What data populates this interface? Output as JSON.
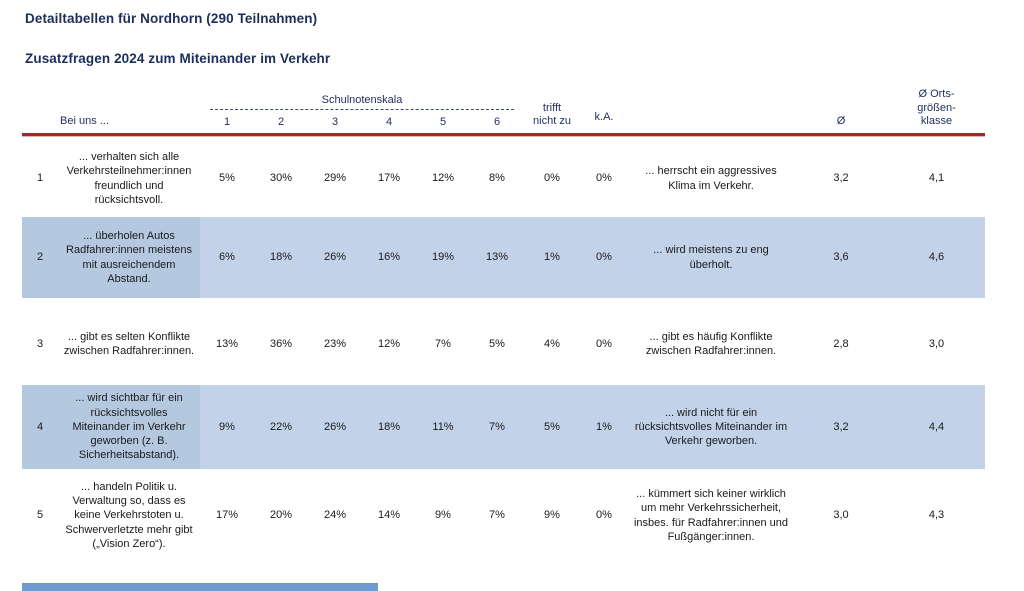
{
  "page": {
    "title": "Detailtabellen für Nordhorn (290 Teilnahmen)",
    "subtitle": "Zusatzfragen 2024 zum Miteinander im Verkehr"
  },
  "table": {
    "header": {
      "bei_uns": "Bei uns ...",
      "scale_label": "Schulnotenskala",
      "scale_columns": [
        "1",
        "2",
        "3",
        "4",
        "5",
        "6"
      ],
      "trifft_lines": [
        "trifft",
        "nicht zu"
      ],
      "ka": "k.A.",
      "avg": "Ø",
      "avg_class_lines": [
        "Ø Orts-",
        "größen-",
        "klasse"
      ]
    },
    "rows": [
      {
        "num": "1",
        "question_positive": "... verhalten sich alle Verkehrsteilnehmer:innen freundlich und rücksichtsvoll.",
        "values": [
          "5%",
          "30%",
          "29%",
          "17%",
          "12%",
          "8%"
        ],
        "trifft_nicht_zu": "0%",
        "ka": "0%",
        "question_negative": "... herrscht ein aggressives Klima im Verkehr.",
        "avg": "3,2",
        "avg_class": "4,1"
      },
      {
        "num": "2",
        "question_positive": "... überholen Autos Radfahrer:innen meistens mit ausreichendem Abstand.",
        "values": [
          "6%",
          "18%",
          "26%",
          "16%",
          "19%",
          "13%"
        ],
        "trifft_nicht_zu": "1%",
        "ka": "0%",
        "question_negative": "... wird meistens zu eng überholt.",
        "avg": "3,6",
        "avg_class": "4,6"
      },
      {
        "num": "3",
        "question_positive": "... gibt es selten Konflikte zwischen Radfahrer:innen.",
        "values": [
          "13%",
          "36%",
          "23%",
          "12%",
          "7%",
          "5%"
        ],
        "trifft_nicht_zu": "4%",
        "ka": "0%",
        "question_negative": "... gibt es häufig Konflikte zwischen Radfahrer:innen.",
        "avg": "2,8",
        "avg_class": "3,0"
      },
      {
        "num": "4",
        "question_positive": "... wird sichtbar für ein rücksichtsvolles Miteinander im Verkehr geworben (z. B. Sicherheitsabstand).",
        "values": [
          "9%",
          "22%",
          "26%",
          "18%",
          "11%",
          "7%"
        ],
        "trifft_nicht_zu": "5%",
        "ka": "1%",
        "question_negative": "... wird nicht für ein rücksichtsvolles Miteinander im Verkehr geworben.",
        "avg": "3,2",
        "avg_class": "4,4"
      },
      {
        "num": "5",
        "question_positive": "... handeln Politik u. Verwaltung so, dass es keine Verkehrstoten u. Schwerverletzte mehr gibt („Vision Zero“).",
        "values": [
          "17%",
          "20%",
          "24%",
          "14%",
          "9%",
          "7%"
        ],
        "trifft_nicht_zu": "9%",
        "ka": "0%",
        "question_negative": "... kümmert sich keiner wirklich um mehr Verkehrssicherheit, insbes. für Radfahrer:innen und Fußgänger:innen.",
        "avg": "3,0",
        "avg_class": "4,3"
      }
    ],
    "colors": {
      "heading_navy": "#1c2e5c",
      "row_highlight": "#c2d3e9",
      "row_highlight_dark": "#b4c8e0",
      "divider_red": "#9d2a23",
      "bottom_bar_blue": "#6f9ad0"
    }
  }
}
